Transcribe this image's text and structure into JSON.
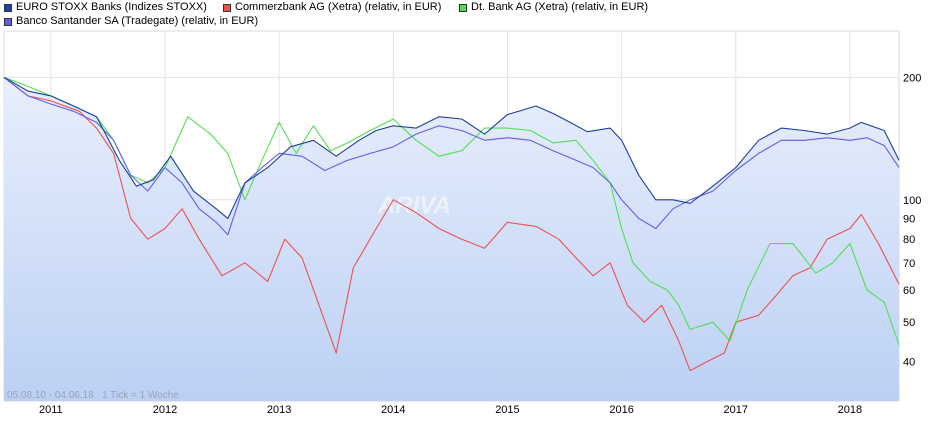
{
  "legend": [
    {
      "label": "EURO STOXX Banks (Indizes STOXX)",
      "color": "#1f3fa0"
    },
    {
      "label": "Commerzbank AG (Xetra) (relativ, in EUR)",
      "color": "#f05050"
    },
    {
      "label": "Dt. Bank AG (Xetra) (relativ, in EUR)",
      "color": "#50e050"
    },
    {
      "label": "Banco Santander SA (Tradegate) (relativ, in EUR)",
      "color": "#6060e8"
    }
  ],
  "range_note": "05.08.10 - 04.06.18   1 Tick = 1 Woche",
  "watermark": "ARIVA",
  "chart_data": {
    "type": "line",
    "y_scale": "log",
    "ylim": [
      32,
      260
    ],
    "xlim": [
      2010.59,
      2018.43
    ],
    "y_ticks": [
      40,
      50,
      60,
      70,
      80,
      90,
      100,
      200
    ],
    "x_ticks": [
      "2011",
      "2012",
      "2013",
      "2014",
      "2015",
      "2016",
      "2017",
      "2018"
    ],
    "x_tick_values": [
      2011.0,
      2012.0,
      2013.0,
      2014.0,
      2015.0,
      2016.0,
      2017.0,
      2018.0
    ],
    "grid": true,
    "legend_position": "top",
    "series": [
      {
        "name": "EURO STOXX Banks (Indizes STOXX)",
        "color": "#1f3fa0",
        "fill": true,
        "x": [
          2010.59,
          2010.8,
          2011.0,
          2011.2,
          2011.4,
          2011.6,
          2011.75,
          2011.9,
          2012.05,
          2012.25,
          2012.45,
          2012.55,
          2012.7,
          2012.9,
          2013.1,
          2013.3,
          2013.5,
          2013.7,
          2013.85,
          2014.0,
          2014.2,
          2014.4,
          2014.6,
          2014.8,
          2015.0,
          2015.25,
          2015.4,
          2015.55,
          2015.7,
          2015.9,
          2016.0,
          2016.15,
          2016.3,
          2016.45,
          2016.6,
          2016.8,
          2017.0,
          2017.2,
          2017.4,
          2017.6,
          2017.8,
          2018.0,
          2018.1,
          2018.3,
          2018.43
        ],
        "y": [
          200,
          185,
          180,
          170,
          160,
          125,
          108,
          112,
          128,
          105,
          95,
          90,
          110,
          120,
          135,
          140,
          128,
          140,
          148,
          152,
          150,
          160,
          158,
          145,
          162,
          170,
          163,
          155,
          147,
          150,
          140,
          115,
          100,
          100,
          98,
          108,
          120,
          140,
          150,
          148,
          145,
          150,
          155,
          148,
          125
        ]
      },
      {
        "name": "Commerzbank AG (Xetra) (relativ, in EUR)",
        "color": "#f05050",
        "fill": false,
        "x": [
          2010.59,
          2010.8,
          2011.0,
          2011.25,
          2011.4,
          2011.55,
          2011.7,
          2011.85,
          2012.0,
          2012.15,
          2012.3,
          2012.5,
          2012.7,
          2012.9,
          2013.05,
          2013.2,
          2013.35,
          2013.5,
          2013.65,
          2013.85,
          2014.0,
          2014.2,
          2014.4,
          2014.6,
          2014.8,
          2015.0,
          2015.25,
          2015.45,
          2015.6,
          2015.75,
          2015.9,
          2016.05,
          2016.2,
          2016.35,
          2016.5,
          2016.6,
          2016.75,
          2016.9,
          2017.0,
          2017.2,
          2017.35,
          2017.5,
          2017.65,
          2017.8,
          2018.0,
          2018.1,
          2018.25,
          2018.43
        ],
        "y": [
          200,
          180,
          175,
          165,
          150,
          130,
          90,
          80,
          85,
          95,
          80,
          65,
          70,
          63,
          80,
          72,
          55,
          42,
          68,
          85,
          100,
          93,
          85,
          80,
          76,
          88,
          86,
          80,
          72,
          65,
          70,
          55,
          50,
          55,
          45,
          38,
          40,
          42,
          50,
          52,
          58,
          65,
          68,
          80,
          85,
          92,
          78,
          62
        ]
      },
      {
        "name": "Dt. Bank AG (Xetra) (relativ, in EUR)",
        "color": "#50e050",
        "fill": false,
        "x": [
          2010.59,
          2010.8,
          2011.0,
          2011.2,
          2011.4,
          2011.55,
          2011.7,
          2011.85,
          2012.0,
          2012.2,
          2012.4,
          2012.55,
          2012.7,
          2012.85,
          2013.0,
          2013.15,
          2013.3,
          2013.45,
          2013.6,
          2013.8,
          2014.0,
          2014.2,
          2014.4,
          2014.6,
          2014.8,
          2015.0,
          2015.2,
          2015.4,
          2015.6,
          2015.75,
          2015.9,
          2016.0,
          2016.1,
          2016.25,
          2016.4,
          2016.5,
          2016.6,
          2016.8,
          2016.95,
          2017.1,
          2017.3,
          2017.5,
          2017.6,
          2017.7,
          2017.85,
          2018.0,
          2018.15,
          2018.3,
          2018.43
        ],
        "y": [
          200,
          190,
          180,
          170,
          160,
          140,
          115,
          110,
          120,
          160,
          145,
          130,
          100,
          125,
          155,
          130,
          152,
          132,
          138,
          148,
          158,
          140,
          128,
          132,
          150,
          150,
          148,
          138,
          140,
          125,
          110,
          85,
          70,
          63,
          60,
          55,
          48,
          50,
          45,
          60,
          78,
          78,
          72,
          66,
          70,
          78,
          60,
          56,
          44
        ]
      },
      {
        "name": "Banco Santander SA (Tradegate) (relativ, in EUR)",
        "color": "#6060e8",
        "fill": false,
        "x": [
          2010.59,
          2010.8,
          2011.0,
          2011.2,
          2011.4,
          2011.55,
          2011.7,
          2011.85,
          2012.0,
          2012.15,
          2012.3,
          2012.45,
          2012.55,
          2012.7,
          2012.85,
          2013.0,
          2013.2,
          2013.4,
          2013.6,
          2013.8,
          2014.0,
          2014.2,
          2014.4,
          2014.6,
          2014.8,
          2015.0,
          2015.2,
          2015.4,
          2015.6,
          2015.75,
          2015.9,
          2016.0,
          2016.15,
          2016.3,
          2016.45,
          2016.6,
          2016.8,
          2017.0,
          2017.2,
          2017.4,
          2017.6,
          2017.8,
          2018.0,
          2018.15,
          2018.3,
          2018.43
        ],
        "y": [
          200,
          180,
          172,
          165,
          155,
          140,
          115,
          105,
          120,
          110,
          95,
          88,
          82,
          110,
          120,
          130,
          128,
          118,
          125,
          130,
          135,
          145,
          152,
          148,
          140,
          142,
          140,
          132,
          125,
          120,
          110,
          100,
          90,
          85,
          95,
          100,
          105,
          118,
          130,
          140,
          140,
          142,
          140,
          142,
          136,
          120
        ]
      }
    ]
  }
}
